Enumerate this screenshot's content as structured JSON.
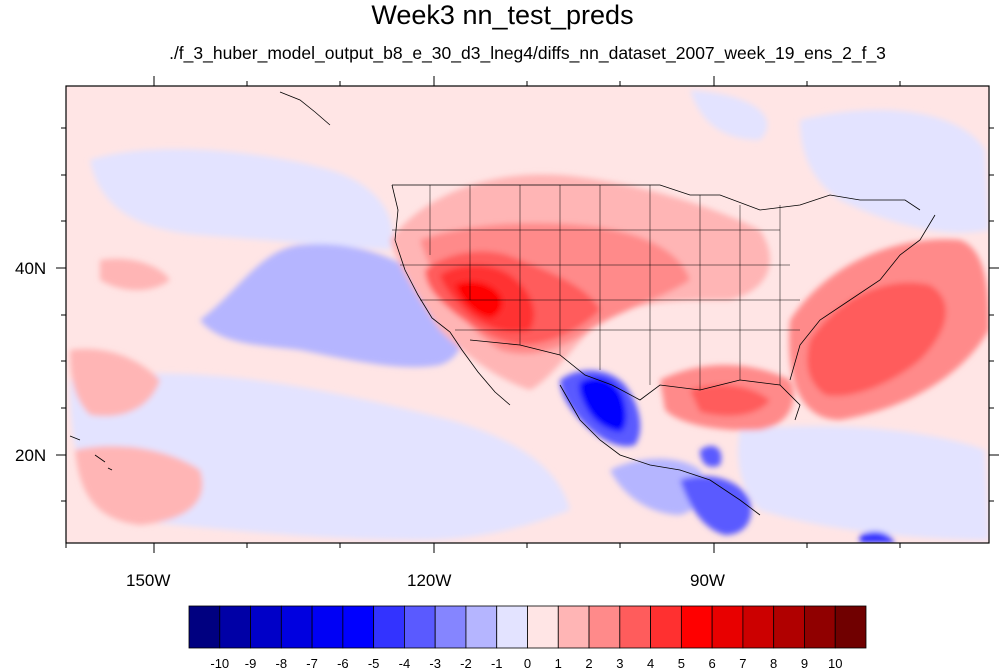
{
  "title": "Week3 nn_test_preds",
  "subtitle": "./f_3_huber_model_output_b8_e_30_d3_lneg4/diffs_nn_dataset_2007_week_19_ens_2_f_3",
  "axes": {
    "x_ticks": [
      "150W",
      "120W",
      "90W"
    ],
    "y_ticks": [
      "40N",
      "20N"
    ]
  },
  "colorbar": {
    "labels": [
      "-10",
      "-9",
      "-8",
      "-7",
      "-6",
      "-5",
      "-4",
      "-3",
      "-2",
      "-1",
      "0",
      "1",
      "2",
      "3",
      "4",
      "5",
      "6",
      "7",
      "8",
      "9",
      "10"
    ],
    "colors": [
      "#000080",
      "#0000a6",
      "#0000c8",
      "#0000e0",
      "#0000f5",
      "#0000ff",
      "#3333ff",
      "#5a5aff",
      "#8585ff",
      "#b5b5ff",
      "#e3e3ff",
      "#ffe5e5",
      "#ffb5b5",
      "#ff8a8a",
      "#ff5c5c",
      "#ff3030",
      "#ff0000",
      "#e80000",
      "#cc0000",
      "#b00000",
      "#900000",
      "#700000"
    ]
  }
}
